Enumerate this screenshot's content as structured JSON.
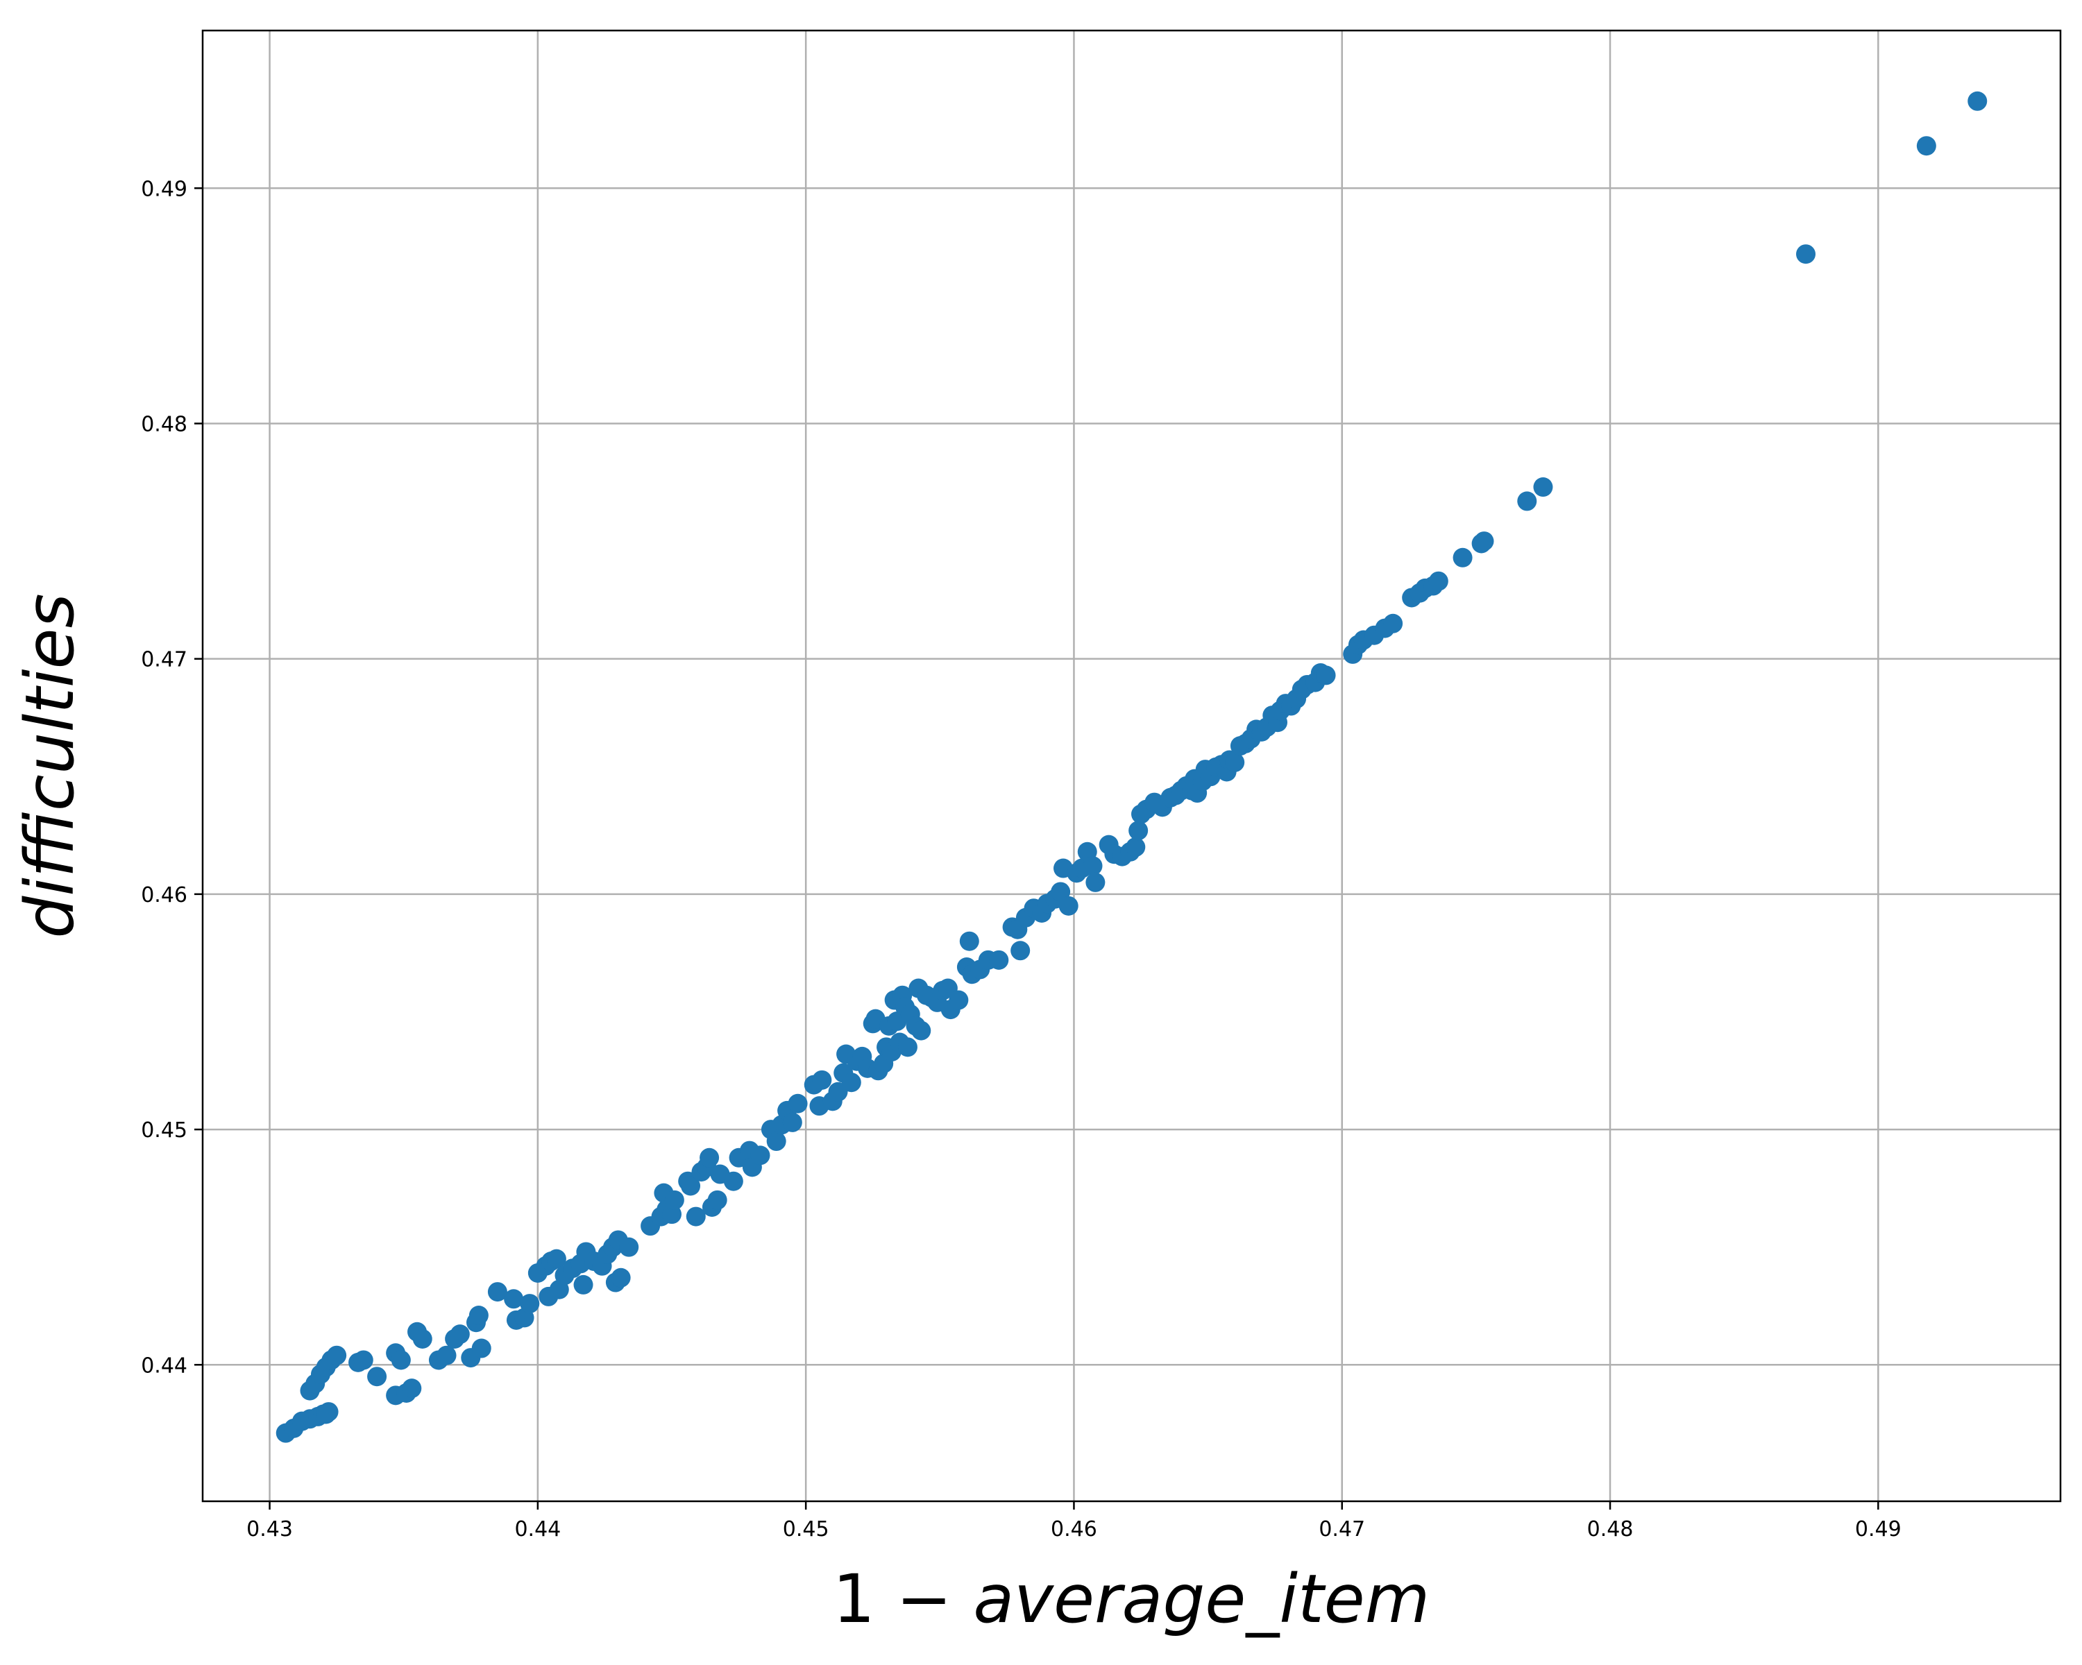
{
  "chart_data": {
    "type": "scatter",
    "title": "",
    "xlabel_prefix": "1 − ",
    "xlabel_var": "average_item",
    "ylabel": "difficulties",
    "xlim": [
      0.4275,
      0.4968
    ],
    "ylim": [
      0.4342,
      0.4967
    ],
    "xticks": [
      "0.43",
      "0.44",
      "0.45",
      "0.46",
      "0.47",
      "0.48",
      "0.49"
    ],
    "yticks": [
      "0.44",
      "0.45",
      "0.46",
      "0.47",
      "0.48",
      "0.49"
    ],
    "grid": true,
    "legend": "none",
    "series": [
      {
        "color": "#1f77b4",
        "points": [
          [
            0.4306,
            0.4371
          ],
          [
            0.4309,
            0.4373
          ],
          [
            0.4312,
            0.4376
          ],
          [
            0.4315,
            0.4377
          ],
          [
            0.4318,
            0.4378
          ],
          [
            0.432,
            0.4379
          ],
          [
            0.4322,
            0.438
          ],
          [
            0.4321,
            0.4379
          ],
          [
            0.4315,
            0.4389
          ],
          [
            0.4317,
            0.4392
          ],
          [
            0.4319,
            0.4396
          ],
          [
            0.4321,
            0.4399
          ],
          [
            0.4323,
            0.4402
          ],
          [
            0.4325,
            0.4404
          ],
          [
            0.4333,
            0.4401
          ],
          [
            0.4335,
            0.4402
          ],
          [
            0.434,
            0.4395
          ],
          [
            0.4347,
            0.4405
          ],
          [
            0.4349,
            0.4402
          ],
          [
            0.4347,
            0.4387
          ],
          [
            0.4351,
            0.4388
          ],
          [
            0.4353,
            0.439
          ],
          [
            0.4355,
            0.4414
          ],
          [
            0.4357,
            0.4411
          ],
          [
            0.4363,
            0.4402
          ],
          [
            0.4366,
            0.4404
          ],
          [
            0.4369,
            0.4411
          ],
          [
            0.4371,
            0.4413
          ],
          [
            0.4375,
            0.4403
          ],
          [
            0.4377,
            0.4418
          ],
          [
            0.4378,
            0.4421
          ],
          [
            0.4379,
            0.4407
          ],
          [
            0.4385,
            0.4431
          ],
          [
            0.4391,
            0.4428
          ],
          [
            0.4392,
            0.4419
          ],
          [
            0.4395,
            0.442
          ],
          [
            0.4397,
            0.4426
          ],
          [
            0.44,
            0.4439
          ],
          [
            0.4403,
            0.4442
          ],
          [
            0.4404,
            0.4429
          ],
          [
            0.4405,
            0.4444
          ],
          [
            0.4407,
            0.4445
          ],
          [
            0.4408,
            0.4432
          ],
          [
            0.441,
            0.4438
          ],
          [
            0.4413,
            0.4441
          ],
          [
            0.4416,
            0.4443
          ],
          [
            0.4417,
            0.4434
          ],
          [
            0.4418,
            0.4448
          ],
          [
            0.4421,
            0.4444
          ],
          [
            0.4424,
            0.4442
          ],
          [
            0.4426,
            0.4447
          ],
          [
            0.4428,
            0.445
          ],
          [
            0.4429,
            0.4435
          ],
          [
            0.443,
            0.4453
          ],
          [
            0.4431,
            0.4437
          ],
          [
            0.4434,
            0.445
          ],
          [
            0.4442,
            0.4459
          ],
          [
            0.4446,
            0.4463
          ],
          [
            0.4447,
            0.4473
          ],
          [
            0.4448,
            0.4466
          ],
          [
            0.445,
            0.4464
          ],
          [
            0.4451,
            0.447
          ],
          [
            0.4456,
            0.4478
          ],
          [
            0.4457,
            0.4476
          ],
          [
            0.4459,
            0.4463
          ],
          [
            0.4461,
            0.4482
          ],
          [
            0.4463,
            0.4484
          ],
          [
            0.4464,
            0.4488
          ],
          [
            0.4465,
            0.4467
          ],
          [
            0.4467,
            0.447
          ],
          [
            0.4468,
            0.4481
          ],
          [
            0.4473,
            0.4478
          ],
          [
            0.4475,
            0.4488
          ],
          [
            0.4479,
            0.4491
          ],
          [
            0.448,
            0.4484
          ],
          [
            0.4483,
            0.4489
          ],
          [
            0.4487,
            0.45
          ],
          [
            0.4489,
            0.4495
          ],
          [
            0.4491,
            0.4502
          ],
          [
            0.4493,
            0.4508
          ],
          [
            0.4495,
            0.4503
          ],
          [
            0.4497,
            0.4511
          ],
          [
            0.4503,
            0.4519
          ],
          [
            0.4505,
            0.451
          ],
          [
            0.4506,
            0.4521
          ],
          [
            0.451,
            0.4512
          ],
          [
            0.4512,
            0.4516
          ],
          [
            0.4514,
            0.4524
          ],
          [
            0.4515,
            0.4532
          ],
          [
            0.4517,
            0.452
          ],
          [
            0.4519,
            0.4529
          ],
          [
            0.4521,
            0.4531
          ],
          [
            0.4523,
            0.4526
          ],
          [
            0.4525,
            0.4545
          ],
          [
            0.4526,
            0.4547
          ],
          [
            0.4527,
            0.4525
          ],
          [
            0.4529,
            0.4528
          ],
          [
            0.453,
            0.4535
          ],
          [
            0.4531,
            0.4544
          ],
          [
            0.4532,
            0.4533
          ],
          [
            0.4533,
            0.4555
          ],
          [
            0.4534,
            0.4546
          ],
          [
            0.4535,
            0.4537
          ],
          [
            0.4536,
            0.4557
          ],
          [
            0.4537,
            0.4552
          ],
          [
            0.4538,
            0.4535
          ],
          [
            0.4539,
            0.4549
          ],
          [
            0.4541,
            0.4544
          ],
          [
            0.4542,
            0.456
          ],
          [
            0.4543,
            0.4542
          ],
          [
            0.4545,
            0.4557
          ],
          [
            0.4547,
            0.4556
          ],
          [
            0.4549,
            0.4554
          ],
          [
            0.4551,
            0.4559
          ],
          [
            0.4553,
            0.456
          ],
          [
            0.4554,
            0.4551
          ],
          [
            0.4557,
            0.4555
          ],
          [
            0.456,
            0.4569
          ],
          [
            0.4561,
            0.458
          ],
          [
            0.4562,
            0.4566
          ],
          [
            0.4565,
            0.4568
          ],
          [
            0.4568,
            0.4572
          ],
          [
            0.4572,
            0.4572
          ],
          [
            0.4577,
            0.4586
          ],
          [
            0.4579,
            0.4585
          ],
          [
            0.458,
            0.4576
          ],
          [
            0.4582,
            0.459
          ],
          [
            0.4585,
            0.4594
          ],
          [
            0.4588,
            0.4592
          ],
          [
            0.459,
            0.4596
          ],
          [
            0.4593,
            0.4598
          ],
          [
            0.4595,
            0.4601
          ],
          [
            0.4596,
            0.4611
          ],
          [
            0.4598,
            0.4595
          ],
          [
            0.4601,
            0.4609
          ],
          [
            0.4603,
            0.4611
          ],
          [
            0.4605,
            0.4618
          ],
          [
            0.4607,
            0.4612
          ],
          [
            0.4608,
            0.4605
          ],
          [
            0.4613,
            0.4621
          ],
          [
            0.4615,
            0.4617
          ],
          [
            0.4618,
            0.4616
          ],
          [
            0.4621,
            0.4618
          ],
          [
            0.4623,
            0.462
          ],
          [
            0.4624,
            0.4627
          ],
          [
            0.4625,
            0.4634
          ],
          [
            0.4627,
            0.4636
          ],
          [
            0.463,
            0.4639
          ],
          [
            0.4633,
            0.4637
          ],
          [
            0.4636,
            0.4641
          ],
          [
            0.4638,
            0.4642
          ],
          [
            0.464,
            0.4644
          ],
          [
            0.4642,
            0.4646
          ],
          [
            0.4644,
            0.4644
          ],
          [
            0.4645,
            0.4649
          ],
          [
            0.4646,
            0.4643
          ],
          [
            0.4648,
            0.4648
          ],
          [
            0.4649,
            0.4653
          ],
          [
            0.4651,
            0.465
          ],
          [
            0.4653,
            0.4654
          ],
          [
            0.4655,
            0.4655
          ],
          [
            0.4657,
            0.4652
          ],
          [
            0.4658,
            0.4657
          ],
          [
            0.466,
            0.4656
          ],
          [
            0.4662,
            0.4663
          ],
          [
            0.4664,
            0.4664
          ],
          [
            0.4666,
            0.4666
          ],
          [
            0.4668,
            0.467
          ],
          [
            0.467,
            0.4669
          ],
          [
            0.4672,
            0.4671
          ],
          [
            0.4674,
            0.4676
          ],
          [
            0.4676,
            0.4673
          ],
          [
            0.4677,
            0.4678
          ],
          [
            0.4679,
            0.4681
          ],
          [
            0.4681,
            0.468
          ],
          [
            0.4683,
            0.4683
          ],
          [
            0.4685,
            0.4687
          ],
          [
            0.4687,
            0.4689
          ],
          [
            0.469,
            0.469
          ],
          [
            0.4692,
            0.4694
          ],
          [
            0.4694,
            0.4693
          ],
          [
            0.4704,
            0.4702
          ],
          [
            0.4706,
            0.4706
          ],
          [
            0.4708,
            0.4708
          ],
          [
            0.4712,
            0.471
          ],
          [
            0.4716,
            0.4713
          ],
          [
            0.4719,
            0.4715
          ],
          [
            0.4726,
            0.4726
          ],
          [
            0.4729,
            0.4728
          ],
          [
            0.4731,
            0.473
          ],
          [
            0.4734,
            0.4731
          ],
          [
            0.4736,
            0.4733
          ],
          [
            0.4745,
            0.4743
          ],
          [
            0.4752,
            0.4749
          ],
          [
            0.4753,
            0.475
          ],
          [
            0.4769,
            0.4767
          ],
          [
            0.4775,
            0.4773
          ],
          [
            0.4873,
            0.4872
          ],
          [
            0.4918,
            0.4918
          ],
          [
            0.4937,
            0.4937
          ]
        ]
      }
    ]
  }
}
